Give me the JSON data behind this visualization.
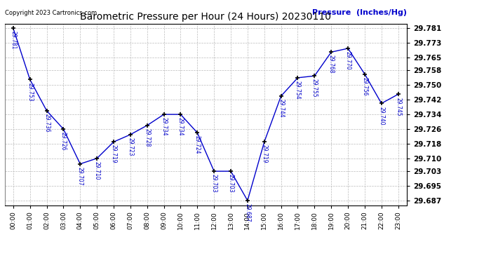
{
  "title": "Barometric Pressure per Hour (24 Hours) 20230110",
  "copyright_text": "Copyright 2023 Cartronics.com",
  "ylabel": "Pressure  (Inches/Hg)",
  "hours": [
    0,
    1,
    2,
    3,
    4,
    5,
    6,
    7,
    8,
    9,
    10,
    11,
    12,
    13,
    14,
    15,
    16,
    17,
    18,
    19,
    20,
    21,
    22,
    23
  ],
  "values": [
    29.781,
    29.753,
    29.736,
    29.726,
    29.707,
    29.71,
    29.719,
    29.723,
    29.728,
    29.734,
    29.734,
    29.724,
    29.703,
    29.703,
    29.687,
    29.719,
    29.744,
    29.754,
    29.755,
    29.768,
    29.77,
    29.756,
    29.74,
    29.745
  ],
  "labels": [
    "29.781",
    "29.753",
    "29.736",
    "29.726",
    "29.707",
    "29.710",
    "29.719",
    "29.723",
    "29.728",
    "29.734",
    "29.734",
    "29.724",
    "29.703",
    "29.703",
    "29.687",
    "29.719",
    "29.744",
    "29.754",
    "29.755",
    "29.768",
    "29.770",
    "29.756",
    "29.740",
    "29.745"
  ],
  "line_color": "#0000cc",
  "marker_color": "#000000",
  "background_color": "#ffffff",
  "grid_color": "#bbbbbb",
  "title_color": "#000000",
  "ylabel_color": "#0000cc",
  "copyright_color": "#000000",
  "label_color": "#0000cc",
  "ylim_min": 29.6845,
  "ylim_max": 29.7835,
  "ytick_values": [
    29.687,
    29.695,
    29.703,
    29.71,
    29.718,
    29.726,
    29.734,
    29.742,
    29.75,
    29.758,
    29.765,
    29.773,
    29.781
  ]
}
